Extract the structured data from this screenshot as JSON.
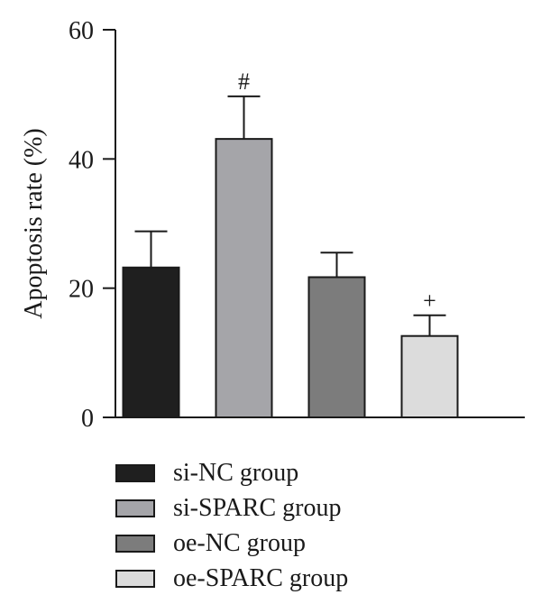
{
  "chart_data": {
    "type": "bar",
    "categories": [
      "si-NC group",
      "si-SPARC group",
      "oe-NC group",
      "oe-SPARC group"
    ],
    "values": [
      23.2,
      43.1,
      21.7,
      12.6
    ],
    "errors": [
      5.6,
      6.6,
      3.8,
      3.2
    ],
    "annotations": [
      "",
      "#",
      "",
      "+"
    ],
    "colors": [
      "#1f1f1f",
      "#a5a5a9",
      "#7c7c7c",
      "#dcdcdc"
    ],
    "ylabel": "Apoptosis rate (%)",
    "xlabel": "",
    "ylim": [
      0,
      60
    ],
    "yticks": [
      0,
      20,
      40,
      60
    ],
    "legend_position": "bottom",
    "grid": false
  }
}
